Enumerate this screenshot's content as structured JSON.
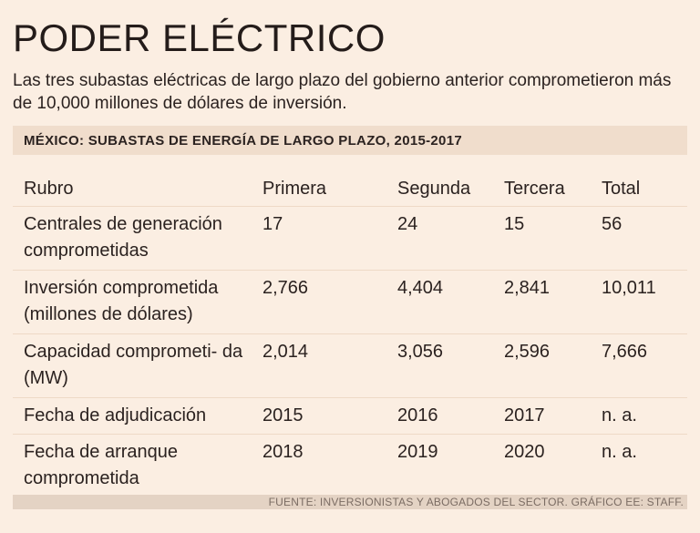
{
  "title": "PODER ELÉCTRICO",
  "subtitle": "Las tres subastas eléctricas de largo plazo del gobierno anterior comprometieron más de 10,000 millones de dólares de inversión.",
  "section_title": "MÉXICO: SUBASTAS DE ENERGÍA DE LARGO PLAZO, 2015-2017",
  "table": {
    "headers": [
      "Rubro",
      "Primera",
      "Segunda",
      "Tercera",
      "Total"
    ],
    "rows": [
      {
        "label": "Centrales de generación comprometidas",
        "primera": "17",
        "segunda": "24",
        "tercera": "15",
        "total": "56"
      },
      {
        "label": "Inversión comprometida (millones de dólares)",
        "primera": "2,766",
        "segunda": "4,404",
        "tercera": "2,841",
        "total": "10,011"
      },
      {
        "label": "Capacidad comprometi- da (MW)",
        "primera": "2,014",
        "segunda": "3,056",
        "tercera": "2,596",
        "total": "7,666"
      },
      {
        "label": "Fecha de adjudicación",
        "primera": "2015",
        "segunda": "2016",
        "tercera": "2017",
        "total": "n. a."
      },
      {
        "label": "Fecha de arranque comprometida",
        "primera": "2018",
        "segunda": "2019",
        "tercera": "2020",
        "total": "n. a."
      }
    ]
  },
  "source": "FUENTE: INVERSIONISTAS Y ABOGADOS DEL SECTOR. GRÁFICO EE: STAFF."
}
